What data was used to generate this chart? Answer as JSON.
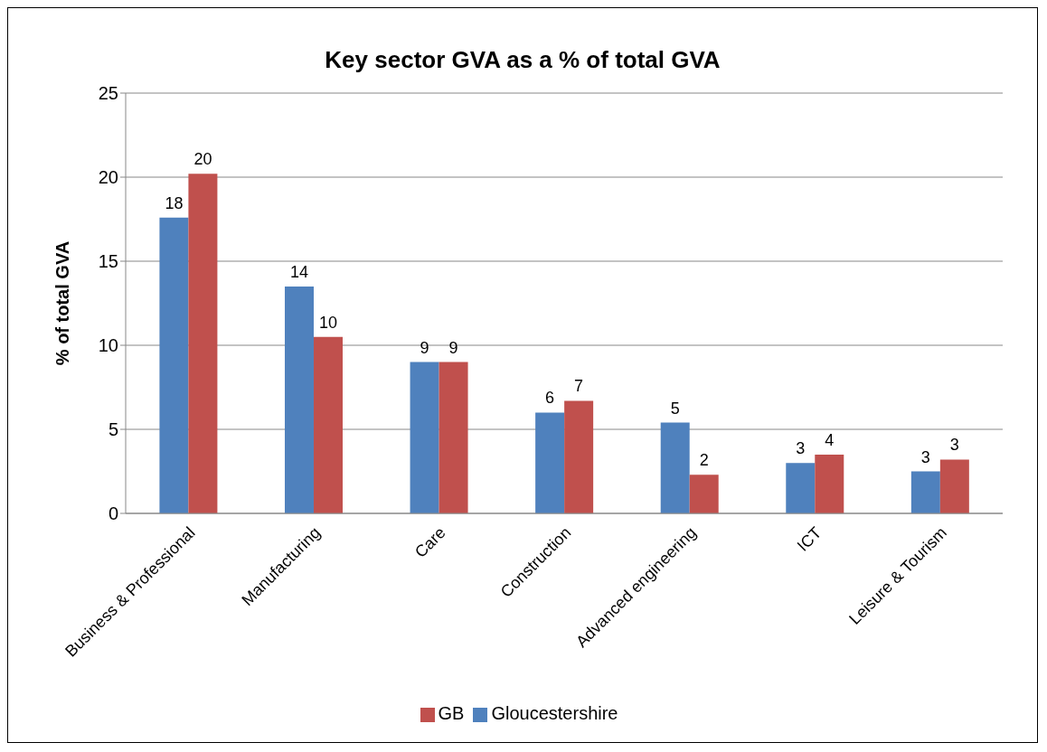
{
  "chart_data": {
    "type": "bar",
    "title": "Key sector GVA as a % of total GVA",
    "ylabel": "% of total GVA",
    "categories": [
      "Business & Professional",
      "Manufacturing",
      "Care",
      "Construction",
      "Advanced engineering",
      "ICT",
      "Leisure & Tourism"
    ],
    "series": [
      {
        "name": "Gloucestershire",
        "color": "#4f81bd",
        "values": [
          17.6,
          13.5,
          9.0,
          6.0,
          5.4,
          3.0,
          2.5
        ],
        "value_labels": [
          "18",
          "14",
          "9",
          "6",
          "5",
          "3",
          "3"
        ]
      },
      {
        "name": "GB",
        "color": "#c0504d",
        "values": [
          20.2,
          10.5,
          9.0,
          6.7,
          2.3,
          3.5,
          3.2
        ],
        "value_labels": [
          "20",
          "10",
          "9",
          "7",
          "2",
          "4",
          "3"
        ]
      }
    ],
    "ylim": [
      0,
      25
    ],
    "yticks": [
      0,
      5,
      10,
      15,
      20,
      25
    ],
    "grid": "y",
    "legend": "bottom"
  }
}
